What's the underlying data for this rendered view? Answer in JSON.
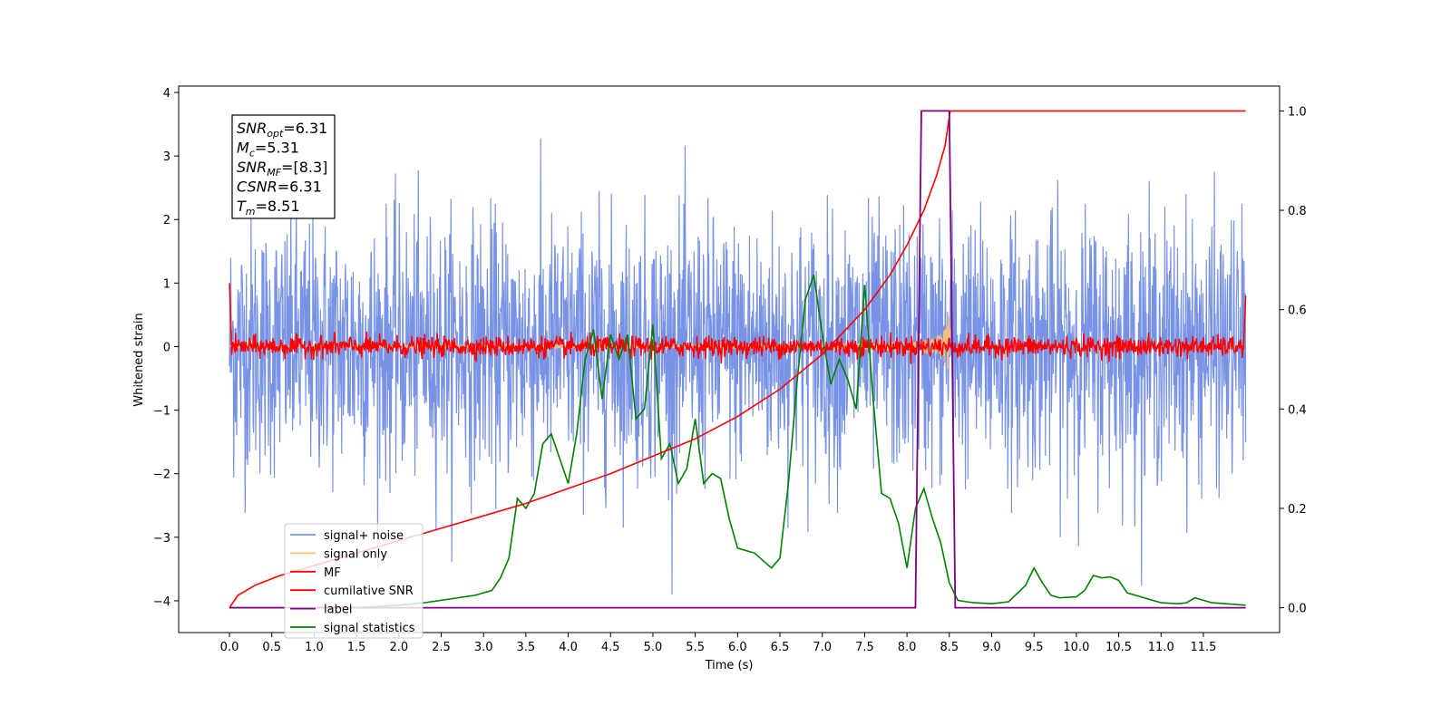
{
  "chart_data": {
    "type": "line",
    "xlabel": "Time (s)",
    "ylabel_left": "Whitened strain",
    "ylabel_right": "",
    "x_range": [
      -0.6,
      12.4
    ],
    "y_left_range": [
      -4.5,
      4.1
    ],
    "y_right_range": [
      -0.05,
      1.05
    ],
    "x_ticks": [
      "0.0",
      "0.5",
      "1.0",
      "1.5",
      "2.0",
      "2.5",
      "3.0",
      "3.5",
      "4.0",
      "4.5",
      "5.0",
      "5.5",
      "6.0",
      "6.5",
      "7.0",
      "7.5",
      "8.0",
      "8.5",
      "9.0",
      "9.5",
      "10.0",
      "10.5",
      "11.0",
      "11.5"
    ],
    "y_left_ticks": [
      "4",
      "3",
      "2",
      "1",
      "0",
      "−1",
      "−2",
      "−3",
      "−4"
    ],
    "y_right_ticks": [
      "1.0",
      "0.8",
      "0.6",
      "0.4",
      "0.2",
      "0.0"
    ],
    "grid": false,
    "legend_position": "lower-left",
    "info_box": {
      "lines": [
        {
          "sym": "SNR",
          "sub": "opt",
          "val": "=6.31"
        },
        {
          "sym": "M",
          "sub": "c",
          "val": "=5.31"
        },
        {
          "sym": "SNR",
          "sub": "MF",
          "val": "=[8.3]"
        },
        {
          "sym": "CSNR",
          "sub": "",
          "val": "=6.31"
        },
        {
          "sym": "T",
          "sub": "m",
          "val": "=8.51"
        }
      ]
    },
    "series": [
      {
        "name": "signal+ noise",
        "color": "#7893e6",
        "axis": "left",
        "x_range": [
          0,
          12
        ],
        "noise_sigma": 1.0,
        "note_shape": "whitened noise"
      },
      {
        "name": "signal only",
        "color": "#f5c07a",
        "axis": "left",
        "x_range": [
          0,
          8.51
        ],
        "peak_amplitude": 0.55,
        "merger_time": 8.51
      },
      {
        "name": "MF",
        "color": "#ff0000",
        "axis": "left",
        "x_range": [
          0,
          12
        ],
        "noise_sigma": 0.08,
        "edge_values": [
          1.0,
          0.8
        ]
      },
      {
        "name": "cumilative SNR",
        "color": "#ff0000",
        "axis": "right",
        "x": [
          0.0,
          0.1,
          0.3,
          0.6,
          1.0,
          1.5,
          2.0,
          2.5,
          3.0,
          3.5,
          4.0,
          4.5,
          5.0,
          5.5,
          6.0,
          6.5,
          7.0,
          7.5,
          7.8,
          8.0,
          8.2,
          8.35,
          8.45,
          8.51,
          12.0
        ],
        "y": [
          0.0,
          0.025,
          0.045,
          0.065,
          0.085,
          0.11,
          0.135,
          0.16,
          0.185,
          0.21,
          0.24,
          0.27,
          0.305,
          0.34,
          0.385,
          0.44,
          0.51,
          0.6,
          0.67,
          0.73,
          0.8,
          0.87,
          0.93,
          1.0,
          1.0
        ]
      },
      {
        "name": "label",
        "color": "#800080",
        "axis": "right",
        "x": [
          0.0,
          8.1,
          8.17,
          8.5,
          8.57,
          12.0
        ],
        "y": [
          0.0,
          0.0,
          1.0,
          1.0,
          0.0,
          0.0
        ]
      },
      {
        "name": "signal statistics",
        "color": "#008000",
        "axis": "right",
        "x": [
          0.0,
          0.5,
          1.0,
          1.5,
          2.0,
          2.3,
          2.5,
          2.7,
          2.9,
          3.1,
          3.2,
          3.3,
          3.4,
          3.5,
          3.6,
          3.7,
          3.8,
          3.9,
          4.0,
          4.1,
          4.2,
          4.3,
          4.4,
          4.5,
          4.6,
          4.7,
          4.8,
          4.9,
          5.0,
          5.1,
          5.2,
          5.3,
          5.4,
          5.5,
          5.6,
          5.7,
          5.8,
          5.9,
          6.0,
          6.2,
          6.4,
          6.5,
          6.6,
          6.7,
          6.8,
          6.9,
          7.0,
          7.1,
          7.2,
          7.3,
          7.4,
          7.5,
          7.6,
          7.7,
          7.8,
          7.9,
          8.0,
          8.1,
          8.2,
          8.3,
          8.4,
          8.5,
          8.6,
          8.7,
          8.8,
          9.0,
          9.2,
          9.4,
          9.5,
          9.6,
          9.7,
          9.8,
          10.0,
          10.1,
          10.2,
          10.3,
          10.4,
          10.5,
          10.6,
          10.8,
          11.0,
          11.2,
          11.3,
          11.4,
          11.6,
          12.0
        ],
        "y": [
          0.0,
          0.0,
          0.0,
          0.0,
          0.005,
          0.01,
          0.015,
          0.02,
          0.025,
          0.035,
          0.06,
          0.1,
          0.22,
          0.2,
          0.23,
          0.33,
          0.35,
          0.3,
          0.25,
          0.35,
          0.5,
          0.56,
          0.42,
          0.55,
          0.5,
          0.55,
          0.38,
          0.4,
          0.57,
          0.3,
          0.33,
          0.25,
          0.28,
          0.38,
          0.25,
          0.27,
          0.26,
          0.18,
          0.12,
          0.11,
          0.08,
          0.1,
          0.25,
          0.45,
          0.62,
          0.67,
          0.55,
          0.45,
          0.5,
          0.46,
          0.4,
          0.65,
          0.42,
          0.23,
          0.22,
          0.17,
          0.08,
          0.2,
          0.24,
          0.18,
          0.13,
          0.05,
          0.015,
          0.012,
          0.01,
          0.008,
          0.012,
          0.045,
          0.08,
          0.05,
          0.025,
          0.02,
          0.022,
          0.035,
          0.065,
          0.06,
          0.062,
          0.055,
          0.03,
          0.02,
          0.01,
          0.008,
          0.01,
          0.02,
          0.01,
          0.005
        ]
      }
    ]
  }
}
